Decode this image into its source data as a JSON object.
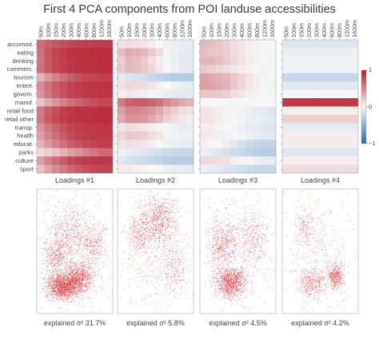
{
  "figure": {
    "title": "First 4 PCA components from POI landuse accessibilities",
    "colorbar_ticks": [
      "1",
      "0",
      "−1"
    ],
    "captions": {
      "loadings": [
        "Loadings #1",
        "Loadings #2",
        "Loadings #3",
        "Loadings #4"
      ],
      "explained_prefix": "explained σ² ",
      "explained": [
        "31.7%",
        "5.8%",
        "4.5%",
        "4.2%"
      ]
    }
  },
  "chart_data": [
    {
      "type": "heatmap",
      "title": "Loadings #1",
      "x": [
        "50m",
        "100m",
        "150m",
        "200m",
        "300m",
        "400m",
        "600m",
        "800m",
        "1200m",
        "1600m"
      ],
      "y": [
        "accomod.",
        "eating",
        "drinking",
        "commerc.",
        "tourism",
        "entert.",
        "govern.",
        "manuf.",
        "retail food",
        "retail other",
        "transp.",
        "health",
        "educat.",
        "parks",
        "culture",
        "sport"
      ],
      "rows": [
        [
          0.62,
          0.68,
          0.72,
          0.75,
          0.78,
          0.8,
          0.82,
          0.83,
          0.84,
          0.84
        ],
        [
          0.6,
          0.72,
          0.8,
          0.85,
          0.88,
          0.89,
          0.89,
          0.9,
          0.9,
          0.9
        ],
        [
          0.58,
          0.7,
          0.78,
          0.83,
          0.86,
          0.88,
          0.89,
          0.89,
          0.9,
          0.9
        ],
        [
          0.6,
          0.71,
          0.79,
          0.84,
          0.87,
          0.88,
          0.89,
          0.9,
          0.9,
          0.9
        ],
        [
          0.3,
          0.42,
          0.52,
          0.6,
          0.68,
          0.73,
          0.78,
          0.8,
          0.82,
          0.82
        ],
        [
          0.48,
          0.6,
          0.7,
          0.76,
          0.81,
          0.84,
          0.86,
          0.87,
          0.88,
          0.88
        ],
        [
          0.45,
          0.58,
          0.67,
          0.74,
          0.8,
          0.83,
          0.85,
          0.86,
          0.87,
          0.87
        ],
        [
          0.22,
          0.35,
          0.45,
          0.52,
          0.6,
          0.66,
          0.72,
          0.75,
          0.78,
          0.79
        ],
        [
          0.55,
          0.68,
          0.76,
          0.82,
          0.86,
          0.88,
          0.89,
          0.89,
          0.9,
          0.9
        ],
        [
          0.58,
          0.7,
          0.78,
          0.83,
          0.87,
          0.88,
          0.89,
          0.9,
          0.9,
          0.9
        ],
        [
          0.45,
          0.58,
          0.67,
          0.74,
          0.8,
          0.83,
          0.85,
          0.86,
          0.87,
          0.87
        ],
        [
          0.4,
          0.52,
          0.62,
          0.7,
          0.77,
          0.81,
          0.84,
          0.85,
          0.86,
          0.86
        ],
        [
          0.3,
          0.42,
          0.52,
          0.6,
          0.68,
          0.73,
          0.77,
          0.8,
          0.82,
          0.83
        ],
        [
          0.12,
          0.18,
          0.24,
          0.3,
          0.38,
          0.45,
          0.52,
          0.57,
          0.62,
          0.64
        ],
        [
          0.4,
          0.52,
          0.62,
          0.7,
          0.77,
          0.81,
          0.84,
          0.85,
          0.86,
          0.86
        ],
        [
          0.25,
          0.38,
          0.48,
          0.56,
          0.64,
          0.7,
          0.75,
          0.78,
          0.8,
          0.81
        ]
      ]
    },
    {
      "type": "heatmap",
      "title": "Loadings #2",
      "x": [
        "50m",
        "100m",
        "150m",
        "200m",
        "300m",
        "400m",
        "600m",
        "800m",
        "1200m",
        "1600m"
      ],
      "y": [
        "accomod.",
        "eating",
        "drinking",
        "commerc.",
        "tourism",
        "entert.",
        "govern.",
        "manuf.",
        "retail food",
        "retail other",
        "transp.",
        "health",
        "educat.",
        "parks",
        "culture",
        "sport"
      ],
      "rows": [
        [
          0.1,
          0.12,
          0.1,
          0.08,
          0.04,
          0.0,
          -0.04,
          -0.06,
          -0.08,
          -0.08
        ],
        [
          0.25,
          0.35,
          0.32,
          0.28,
          0.2,
          0.12,
          0.02,
          -0.04,
          -0.08,
          -0.1
        ],
        [
          0.18,
          0.28,
          0.25,
          0.2,
          0.12,
          0.05,
          -0.02,
          -0.06,
          -0.1,
          -0.1
        ],
        [
          0.2,
          0.28,
          0.26,
          0.22,
          0.15,
          0.08,
          0.0,
          -0.05,
          -0.08,
          -0.1
        ],
        [
          -0.1,
          -0.12,
          -0.15,
          -0.18,
          -0.22,
          -0.25,
          -0.28,
          -0.3,
          -0.3,
          -0.3
        ],
        [
          0.1,
          0.15,
          0.14,
          0.12,
          0.08,
          0.04,
          0.0,
          -0.04,
          -0.06,
          -0.08
        ],
        [
          0.05,
          0.08,
          0.06,
          0.04,
          0.0,
          -0.02,
          -0.06,
          -0.08,
          -0.1,
          -0.1
        ],
        [
          0.55,
          0.65,
          0.68,
          0.68,
          0.65,
          0.6,
          0.5,
          0.42,
          0.35,
          0.3
        ],
        [
          0.4,
          0.5,
          0.5,
          0.48,
          0.42,
          0.35,
          0.25,
          0.18,
          0.12,
          0.1
        ],
        [
          0.35,
          0.45,
          0.45,
          0.42,
          0.35,
          0.28,
          0.18,
          0.12,
          0.08,
          0.05
        ],
        [
          0.08,
          0.12,
          0.1,
          0.08,
          0.05,
          0.02,
          -0.02,
          -0.05,
          -0.08,
          -0.08
        ],
        [
          0.15,
          0.22,
          0.2,
          0.18,
          0.12,
          0.08,
          0.02,
          -0.02,
          -0.05,
          -0.06
        ],
        [
          0.1,
          0.12,
          0.1,
          0.08,
          0.04,
          0.0,
          -0.04,
          -0.06,
          -0.08,
          -0.08
        ],
        [
          -0.05,
          -0.08,
          -0.1,
          -0.12,
          -0.15,
          -0.18,
          -0.2,
          -0.22,
          -0.22,
          -0.22
        ],
        [
          -0.1,
          -0.15,
          -0.18,
          -0.2,
          -0.22,
          -0.25,
          -0.28,
          -0.3,
          -0.3,
          -0.3
        ],
        [
          0.05,
          0.06,
          0.04,
          0.02,
          0.0,
          -0.02,
          -0.04,
          -0.06,
          -0.08,
          -0.08
        ]
      ]
    },
    {
      "type": "heatmap",
      "title": "Loadings #3",
      "x": [
        "50m",
        "100m",
        "150m",
        "200m",
        "300m",
        "400m",
        "600m",
        "800m",
        "1200m",
        "1600m"
      ],
      "y": [
        "accomod.",
        "eating",
        "drinking",
        "commerc.",
        "tourism",
        "entert.",
        "govern.",
        "manuf.",
        "retail food",
        "retail other",
        "transp.",
        "health",
        "educat.",
        "parks",
        "culture",
        "sport"
      ],
      "rows": [
        [
          0.28,
          0.26,
          0.22,
          0.18,
          0.12,
          0.08,
          0.05,
          0.02,
          0.0,
          0.0
        ],
        [
          0.25,
          0.22,
          0.2,
          0.18,
          0.12,
          0.08,
          0.04,
          0.02,
          0.0,
          -0.02
        ],
        [
          0.3,
          0.28,
          0.25,
          0.2,
          0.15,
          0.1,
          0.05,
          0.02,
          0.0,
          -0.02
        ],
        [
          0.2,
          0.18,
          0.15,
          0.12,
          0.08,
          0.05,
          0.02,
          0.0,
          -0.02,
          -0.03
        ],
        [
          0.38,
          0.36,
          0.32,
          0.28,
          0.22,
          0.16,
          0.1,
          0.05,
          0.02,
          0.0
        ],
        [
          0.4,
          0.38,
          0.35,
          0.3,
          0.22,
          0.15,
          0.08,
          0.04,
          0.0,
          -0.02
        ],
        [
          0.22,
          0.22,
          0.2,
          0.18,
          0.12,
          0.08,
          0.04,
          0.02,
          0.0,
          -0.02
        ],
        [
          0.0,
          0.0,
          0.0,
          0.0,
          0.0,
          0.0,
          0.0,
          0.0,
          0.0,
          0.0
        ],
        [
          0.1,
          0.08,
          0.05,
          0.02,
          0.0,
          -0.02,
          -0.05,
          -0.08,
          -0.1,
          -0.12
        ],
        [
          0.1,
          0.08,
          0.05,
          0.02,
          0.0,
          -0.02,
          -0.05,
          -0.06,
          -0.08,
          -0.1
        ],
        [
          0.05,
          0.04,
          0.02,
          0.0,
          -0.02,
          -0.05,
          -0.08,
          -0.1,
          -0.12,
          -0.12
        ],
        [
          0.08,
          0.06,
          0.04,
          0.02,
          0.0,
          -0.02,
          -0.05,
          -0.08,
          -0.1,
          -0.1
        ],
        [
          0.05,
          0.02,
          0.0,
          -0.05,
          -0.1,
          -0.15,
          -0.2,
          -0.22,
          -0.25,
          -0.25
        ],
        [
          -0.05,
          -0.08,
          -0.12,
          -0.15,
          -0.2,
          -0.22,
          -0.25,
          -0.28,
          -0.3,
          -0.3
        ],
        [
          0.15,
          0.14,
          0.12,
          0.1,
          0.05,
          0.02,
          -0.02,
          -0.05,
          -0.08,
          -0.08
        ],
        [
          -0.05,
          -0.08,
          -0.1,
          -0.12,
          -0.15,
          -0.18,
          -0.2,
          -0.22,
          -0.22,
          -0.22
        ]
      ]
    },
    {
      "type": "heatmap",
      "title": "Loadings #4",
      "x": [
        "50m",
        "100m",
        "150m",
        "200m",
        "300m",
        "400m",
        "600m",
        "800m",
        "1200m",
        "1600m"
      ],
      "y": [
        "accomod.",
        "eating",
        "drinking",
        "commerc.",
        "tourism",
        "entert.",
        "govern.",
        "manuf.",
        "retail food",
        "retail other",
        "transp.",
        "health",
        "educat.",
        "parks",
        "culture",
        "sport"
      ],
      "rows": [
        [
          -0.12,
          -0.12,
          -0.12,
          -0.12,
          -0.12,
          -0.12,
          -0.12,
          -0.12,
          -0.12,
          -0.12
        ],
        [
          -0.05,
          -0.05,
          -0.05,
          -0.05,
          -0.05,
          -0.05,
          -0.05,
          -0.05,
          -0.05,
          -0.05
        ],
        [
          -0.04,
          -0.04,
          -0.04,
          -0.04,
          -0.04,
          -0.04,
          -0.04,
          -0.04,
          -0.04,
          -0.04
        ],
        [
          -0.04,
          -0.04,
          -0.04,
          -0.04,
          -0.04,
          -0.04,
          -0.04,
          -0.04,
          -0.04,
          -0.04
        ],
        [
          -0.22,
          -0.22,
          -0.22,
          -0.22,
          -0.22,
          -0.22,
          -0.22,
          -0.22,
          -0.22,
          -0.22
        ],
        [
          -0.1,
          -0.1,
          -0.1,
          -0.1,
          -0.1,
          -0.1,
          -0.1,
          -0.1,
          -0.1,
          -0.1
        ],
        [
          0.0,
          0.0,
          0.0,
          0.0,
          0.0,
          0.0,
          0.0,
          0.0,
          0.0,
          0.0
        ],
        [
          0.85,
          0.85,
          0.85,
          0.85,
          0.85,
          0.85,
          0.85,
          0.85,
          0.85,
          0.85
        ],
        [
          0.04,
          0.04,
          0.04,
          0.04,
          0.04,
          0.04,
          0.04,
          0.04,
          0.04,
          0.04
        ],
        [
          0.18,
          0.18,
          0.18,
          0.18,
          0.18,
          0.18,
          0.18,
          0.18,
          0.18,
          0.18
        ],
        [
          -0.08,
          -0.08,
          -0.08,
          -0.08,
          -0.08,
          -0.08,
          -0.08,
          -0.08,
          -0.08,
          -0.08
        ],
        [
          0.05,
          0.05,
          0.05,
          0.05,
          0.05,
          0.05,
          0.05,
          0.05,
          0.05,
          0.05
        ],
        [
          0.05,
          0.05,
          0.05,
          0.05,
          0.05,
          0.05,
          0.05,
          0.05,
          0.05,
          0.05
        ],
        [
          -0.12,
          -0.12,
          -0.12,
          -0.12,
          -0.12,
          -0.12,
          -0.12,
          -0.12,
          -0.12,
          -0.12
        ],
        [
          0.05,
          0.05,
          0.05,
          0.05,
          0.05,
          0.05,
          0.05,
          0.05,
          0.05,
          0.05
        ],
        [
          0.12,
          0.12,
          0.12,
          0.12,
          0.12,
          0.12,
          0.12,
          0.12,
          0.12,
          0.12
        ]
      ]
    }
  ],
  "colors": {
    "positive": "#b2182b",
    "neutral": "#f7f7f7",
    "negative": "#2166ac",
    "map_points": "#d6131b"
  }
}
